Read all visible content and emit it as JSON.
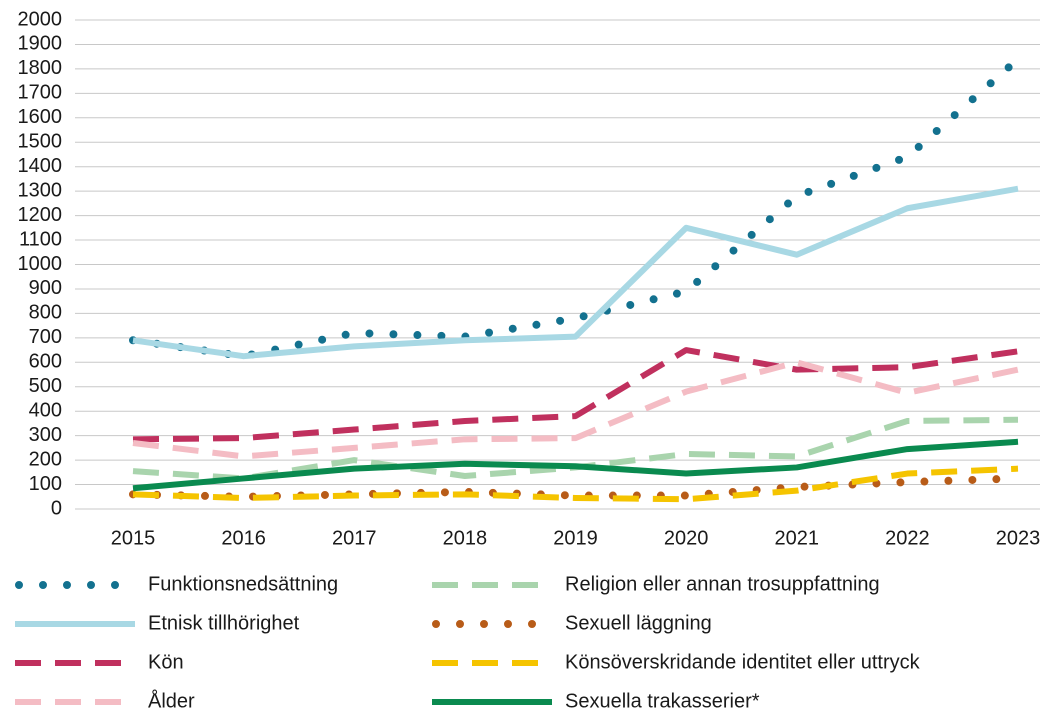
{
  "chart_data": {
    "type": "line",
    "x": [
      2015,
      2016,
      2017,
      2018,
      2019,
      2020,
      2021,
      2022,
      2023
    ],
    "xlim": [
      2015,
      2023
    ],
    "xticks": [
      2015,
      2016,
      2017,
      2018,
      2019,
      2020,
      2021,
      2022,
      2023
    ],
    "ylim": [
      0,
      2000
    ],
    "yticks": [
      0,
      100,
      200,
      300,
      400,
      500,
      600,
      700,
      800,
      900,
      1000,
      1100,
      1200,
      1300,
      1400,
      1500,
      1600,
      1700,
      1800,
      1900,
      2000
    ],
    "grid": true,
    "series": [
      {
        "name": "Funktionsnedsättning",
        "color": "#13718f",
        "style": "dotted",
        "values": [
          690,
          625,
          720,
          705,
          780,
          890,
          1280,
          1440,
          1840
        ]
      },
      {
        "name": "Etnisk tillhörighet",
        "color": "#a8d8e4",
        "style": "solid",
        "values": [
          690,
          625,
          665,
          690,
          705,
          1150,
          1040,
          1230,
          1310
        ]
      },
      {
        "name": "Kön",
        "color": "#c0305e",
        "style": "dashed",
        "values": [
          285,
          290,
          325,
          360,
          380,
          650,
          570,
          580,
          645
        ]
      },
      {
        "name": "Ålder",
        "color": "#f4bcc4",
        "style": "dashed",
        "values": [
          270,
          215,
          250,
          285,
          290,
          480,
          600,
          475,
          570
        ]
      },
      {
        "name": "Religion eller annan trosuppfattning",
        "color": "#a9d4ad",
        "style": "dashed",
        "values": [
          155,
          125,
          200,
          135,
          170,
          225,
          215,
          360,
          365
        ]
      },
      {
        "name": "Sexuell läggning",
        "color": "#b85c18",
        "style": "dotted",
        "values": [
          60,
          50,
          60,
          70,
          55,
          55,
          90,
          110,
          125
        ]
      },
      {
        "name": "Könsöverskridande identitet eller uttryck",
        "color": "#f5c400",
        "style": "dashed",
        "values": [
          60,
          45,
          55,
          60,
          45,
          40,
          75,
          145,
          165
        ]
      },
      {
        "name": "Sexuella trakasserier*",
        "color": "#0a8a4f",
        "style": "solid",
        "values": [
          85,
          125,
          165,
          185,
          175,
          145,
          170,
          245,
          275
        ]
      }
    ]
  }
}
